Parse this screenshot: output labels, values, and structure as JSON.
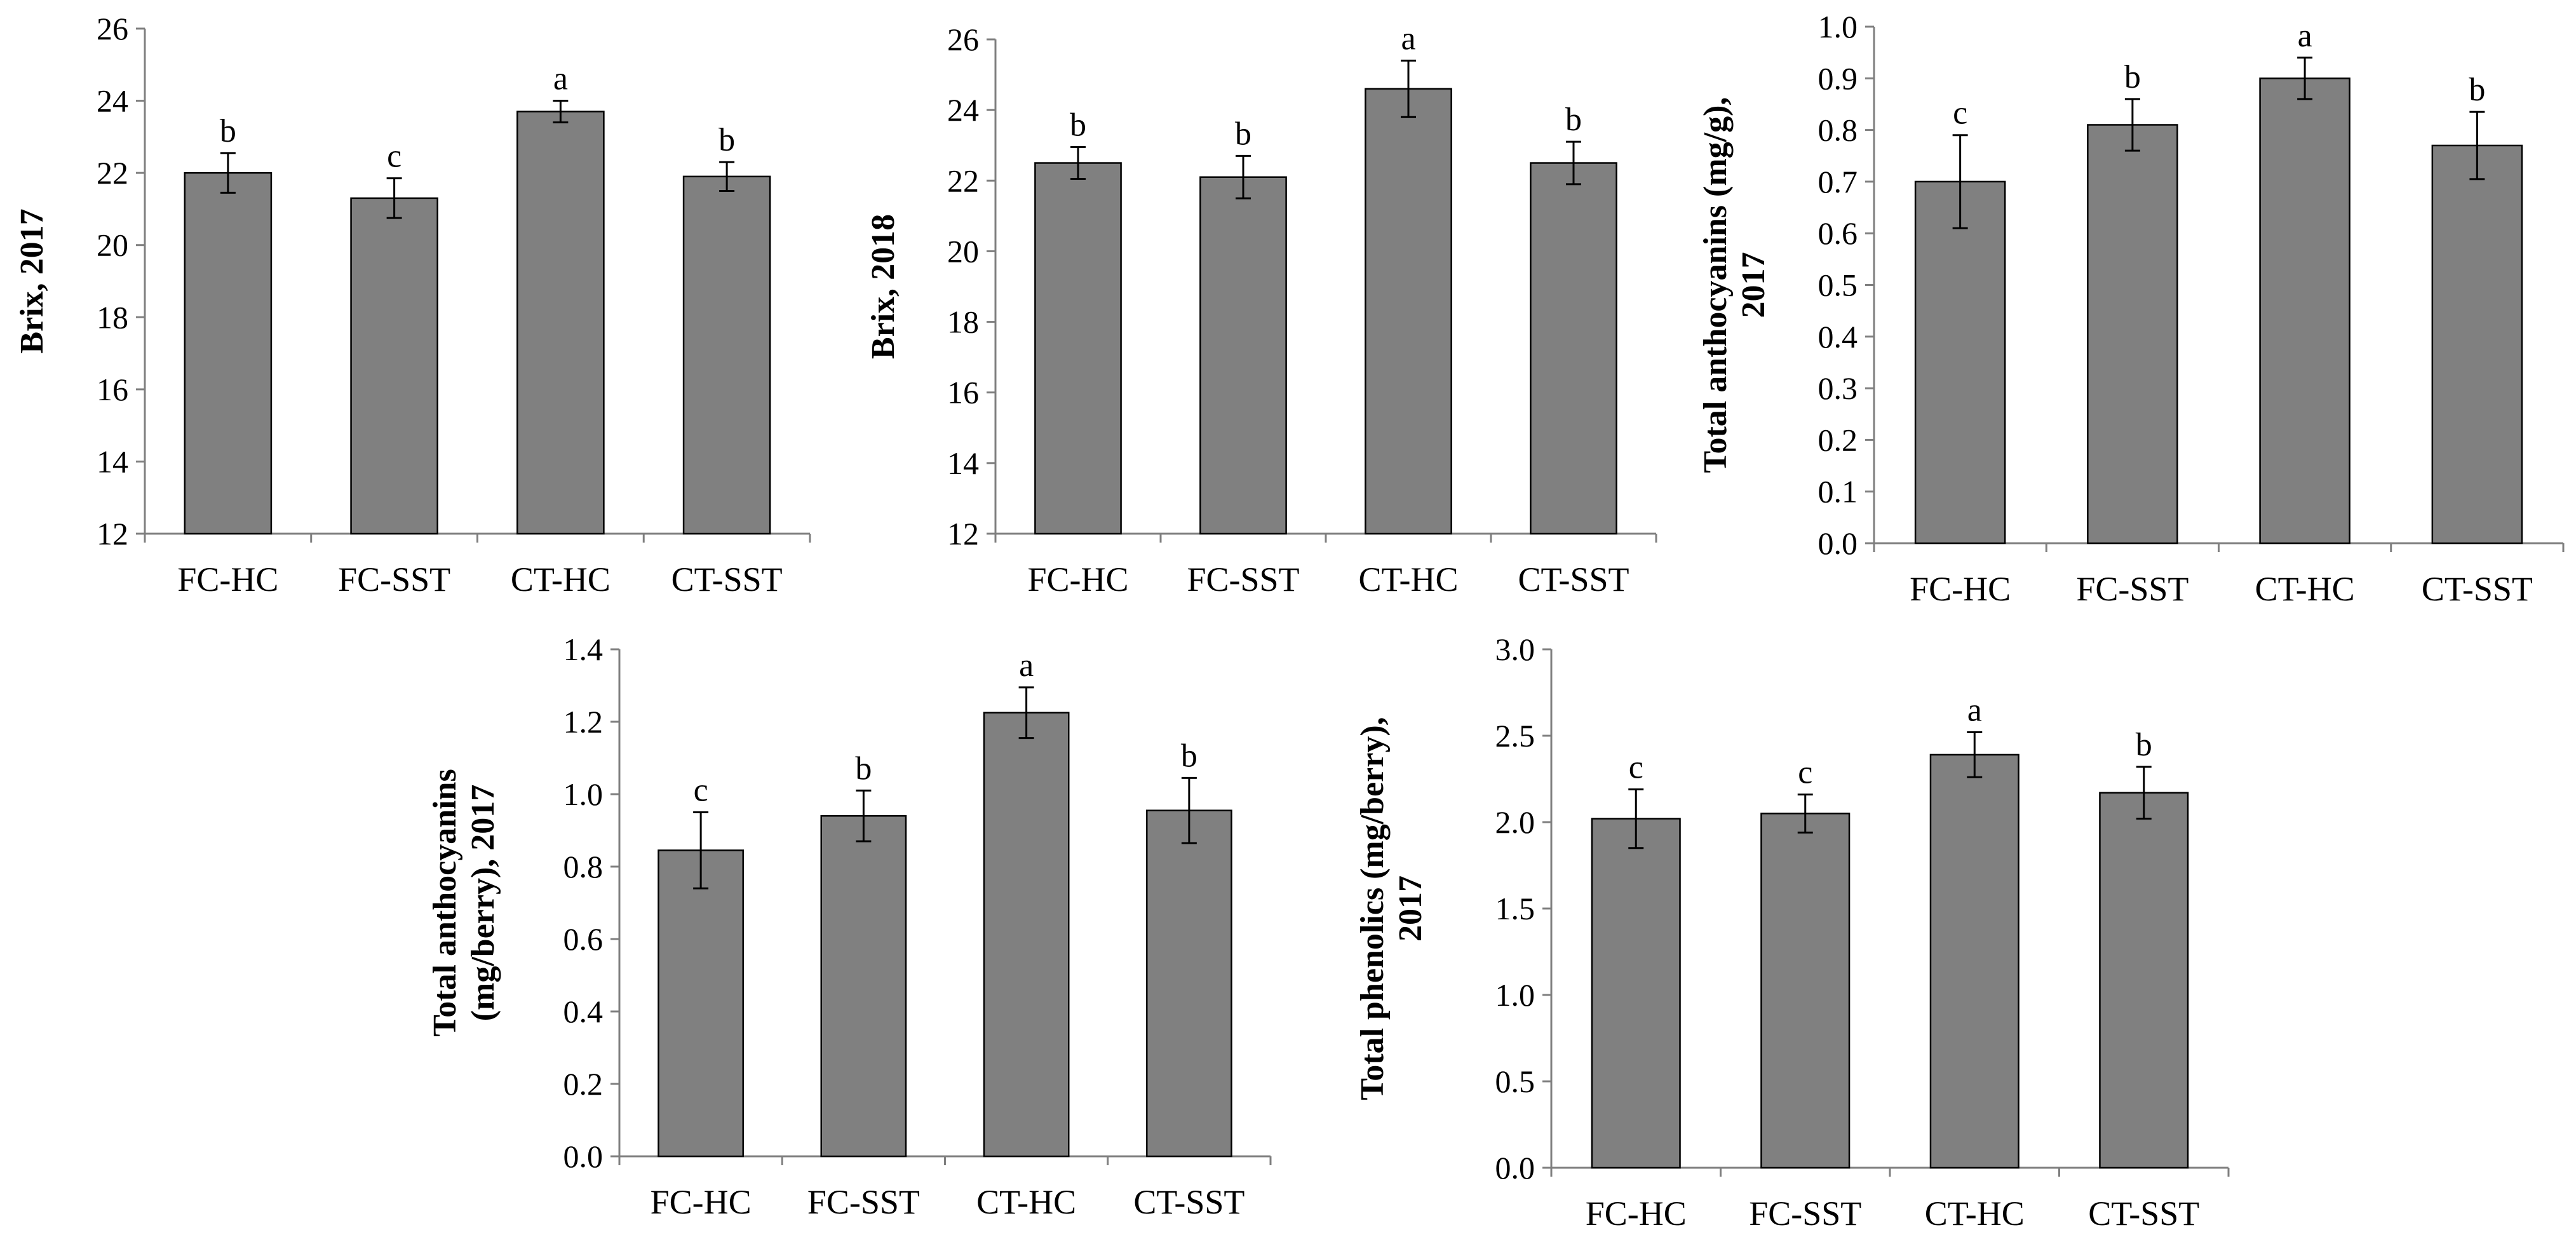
{
  "chart_data": [
    {
      "id": "brix-2017",
      "type": "bar",
      "categories": [
        "FC-HC",
        "FC-SST",
        "CT-HC",
        "CT-SST"
      ],
      "values": [
        22.0,
        21.3,
        23.7,
        21.9
      ],
      "errors": [
        0.55,
        0.55,
        0.3,
        0.4
      ],
      "significance": [
        "b",
        "c",
        "a",
        "b"
      ],
      "ylabel_lines": [
        "Brix, 2017"
      ],
      "ylim": [
        12,
        26
      ],
      "yticks": [
        12,
        14,
        16,
        18,
        20,
        22,
        24,
        26
      ],
      "tick_decimals": 0,
      "bar_color": "#808080",
      "grid": false
    },
    {
      "id": "brix-2018",
      "type": "bar",
      "categories": [
        "FC-HC",
        "FC-SST",
        "CT-HC",
        "CT-SST"
      ],
      "values": [
        22.5,
        22.1,
        24.6,
        22.5
      ],
      "errors": [
        0.45,
        0.6,
        0.8,
        0.6
      ],
      "significance": [
        "b",
        "b",
        "a",
        "b"
      ],
      "ylabel_lines": [
        "Brix, 2018"
      ],
      "ylim": [
        12,
        26
      ],
      "yticks": [
        12,
        14,
        16,
        18,
        20,
        22,
        24,
        26
      ],
      "tick_decimals": 0,
      "bar_color": "#808080",
      "grid": false
    },
    {
      "id": "anthocyanins-mg-g-2017",
      "type": "bar",
      "categories": [
        "FC-HC",
        "FC-SST",
        "CT-HC",
        "CT-SST"
      ],
      "values": [
        0.7,
        0.81,
        0.9,
        0.77
      ],
      "errors": [
        0.09,
        0.05,
        0.04,
        0.065
      ],
      "significance": [
        "c",
        "b",
        "a",
        "b"
      ],
      "ylabel_lines": [
        "Total anthocyanins (mg/g),",
        "2017"
      ],
      "ylim": [
        0.0,
        1.0
      ],
      "yticks": [
        0.0,
        0.1,
        0.2,
        0.3,
        0.4,
        0.5,
        0.6,
        0.7,
        0.8,
        0.9,
        1.0
      ],
      "tick_decimals": 1,
      "bar_color": "#808080",
      "grid": false
    },
    {
      "id": "anthocyanins-mg-berry-2017",
      "type": "bar",
      "categories": [
        "FC-HC",
        "FC-SST",
        "CT-HC",
        "CT-SST"
      ],
      "values": [
        0.845,
        0.94,
        1.225,
        0.955
      ],
      "errors": [
        0.105,
        0.07,
        0.07,
        0.09
      ],
      "significance": [
        "c",
        "b",
        "a",
        "b"
      ],
      "ylabel_lines": [
        "Total anthocyanins",
        "(mg/berry), 2017"
      ],
      "ylim": [
        0.0,
        1.4
      ],
      "yticks": [
        0.0,
        0.2,
        0.4,
        0.6,
        0.8,
        1.0,
        1.2,
        1.4
      ],
      "tick_decimals": 1,
      "bar_color": "#808080",
      "grid": false
    },
    {
      "id": "phenolics-2017",
      "type": "bar",
      "categories": [
        "FC-HC",
        "FC-SST",
        "CT-HC",
        "CT-SST"
      ],
      "values": [
        2.02,
        2.05,
        2.39,
        2.17
      ],
      "errors": [
        0.17,
        0.11,
        0.13,
        0.15
      ],
      "significance": [
        "c",
        "c",
        "a",
        "b"
      ],
      "ylabel_lines": [
        "Total phenolics (mg/berry),",
        "2017"
      ],
      "ylim": [
        0.0,
        3.0
      ],
      "yticks": [
        0.0,
        0.5,
        1.0,
        1.5,
        2.0,
        2.5,
        3.0
      ],
      "tick_decimals": 1,
      "bar_color": "#808080",
      "grid": false
    }
  ]
}
